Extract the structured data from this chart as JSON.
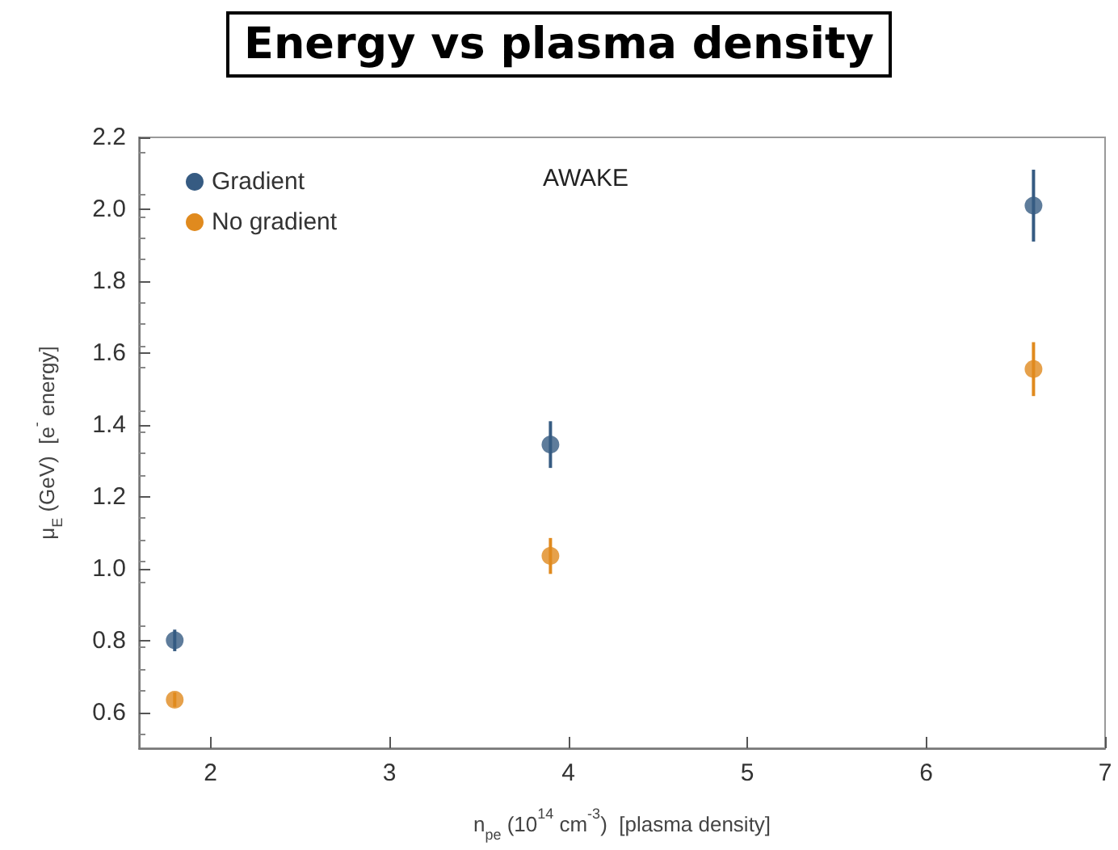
{
  "chart_data": {
    "type": "scatter",
    "title": "Energy vs plasma density",
    "xlabel": "n$_{pe}$ (10$^{14}$ cm$^{-3}$)  [plasma density]",
    "ylabel": "μ$_{E}$ (GeV)  [e$^{-}$ energy]",
    "x": [
      1.8,
      3.9,
      6.6
    ],
    "series": [
      {
        "name": "Gradient",
        "color": "#365b82",
        "values": [
          0.8,
          1.345,
          2.01
        ],
        "errors": [
          0.03,
          0.065,
          0.1
        ]
      },
      {
        "name": "No gradient",
        "color": "#e08a1e",
        "values": [
          0.635,
          1.035,
          1.555
        ],
        "errors": [
          0.02,
          0.05,
          0.075
        ]
      }
    ],
    "xlim": [
      1.6,
      7
    ],
    "xticks": [
      2,
      3,
      4,
      5,
      6,
      7
    ],
    "ylim": [
      0.5,
      2.2
    ],
    "yticks": [
      0.6,
      0.8,
      {
        "value": 1,
        "label": "1.0"
      },
      1.2,
      1.4,
      1.6,
      1.8,
      {
        "value": 2,
        "label": "2.0"
      },
      2.2
    ],
    "annotations": [
      "AWAKE"
    ],
    "marker": "circle",
    "grid": false,
    "legend": "top left"
  }
}
